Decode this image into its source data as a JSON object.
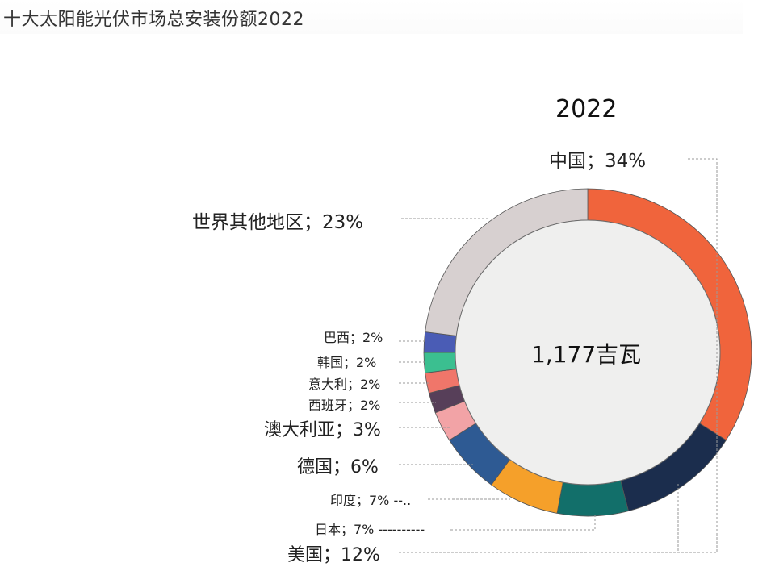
{
  "page": {
    "title": "十大太阳能光伏市场总安装份额2022"
  },
  "chart_data": {
    "type": "pie",
    "subtype": "donut",
    "title": "2022",
    "center_label": "1,177吉瓦",
    "categories": [
      "中国",
      "美国",
      "日本",
      "印度",
      "德国",
      "澳大利亚",
      "西班牙",
      "意大利",
      "韩国",
      "巴西",
      "世界其他地区"
    ],
    "values": [
      34,
      12,
      7,
      7,
      6,
      3,
      2,
      2,
      2,
      2,
      23
    ],
    "unit": "%",
    "colors": [
      "#f0643c",
      "#1b2d4d",
      "#126f6a",
      "#f5a02a",
      "#2e5a93",
      "#f2a3a6",
      "#573f59",
      "#f0766a",
      "#3bbf90",
      "#4a5cb5",
      "#d7d0d0"
    ],
    "labels": [
      "中国；34%",
      "美国；12%",
      "日本；7%",
      "印度；7%",
      "德国；6%",
      "澳大利亚；3%",
      "西班牙；2%",
      "意大利；2%",
      "韩国；2%",
      "巴西；2%",
      "世界其他地区；23%"
    ],
    "legend_position": "callout-labels"
  },
  "labels": {
    "china": "中国；34%",
    "usa": "美国；12%",
    "japan": "日本；7% ----------",
    "india": "印度；7% --..",
    "germany": "德国；6%",
    "australia": "澳大利亚；3%",
    "spain": "西班牙；2%",
    "italy": "意大利；2%",
    "korea": "韩国；2%",
    "brazil": "巴西；2%",
    "rest": "世界其他地区；23%"
  }
}
